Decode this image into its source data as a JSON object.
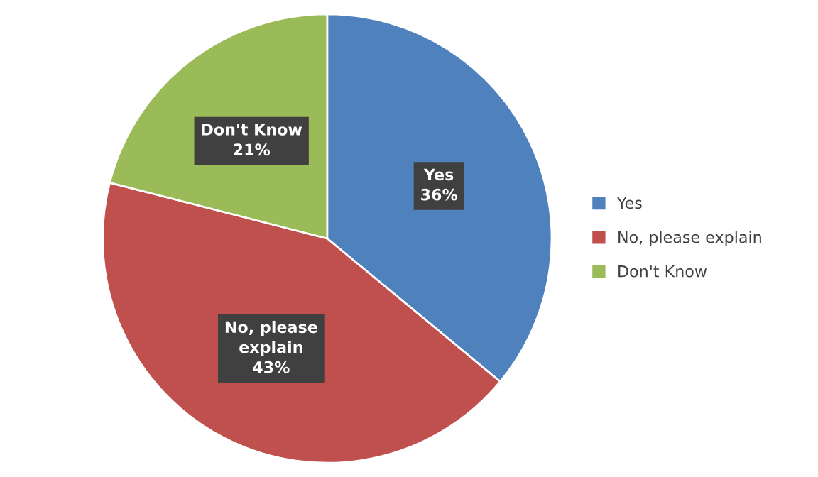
{
  "chart_data": {
    "type": "pie",
    "categories": [
      "Yes",
      "No, please explain",
      "Don't Know"
    ],
    "values": [
      36,
      43,
      21
    ],
    "value_labels": [
      "36%",
      "43%",
      "21%"
    ],
    "colors": [
      "#4f81bd",
      "#c0504d",
      "#9bbb59"
    ],
    "legend": "right"
  }
}
